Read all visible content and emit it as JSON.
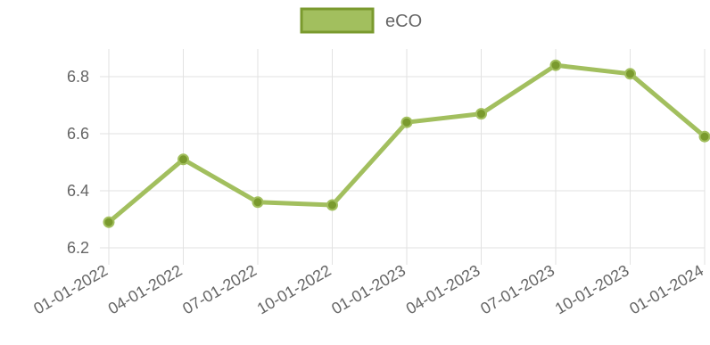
{
  "chart_data": {
    "type": "line",
    "categories": [
      "01-01-2022",
      "04-01-2022",
      "07-01-2022",
      "10-01-2022",
      "01-01-2023",
      "04-01-2023",
      "07-01-2023",
      "10-01-2023",
      "01-01-2024"
    ],
    "series": [
      {
        "name": "eCO",
        "values": [
          6.29,
          6.51,
          6.36,
          6.35,
          6.64,
          6.67,
          6.84,
          6.81,
          6.59
        ],
        "color": "#7a9a2e",
        "fill_color": "#a2bf5e"
      }
    ],
    "y_ticks": [
      "6.2",
      "6.4",
      "6.6",
      "6.8"
    ],
    "ylim": [
      6.2,
      6.8
    ],
    "grid": true,
    "legend_position": "top-center",
    "title": "",
    "xlabel": "",
    "ylabel": ""
  }
}
